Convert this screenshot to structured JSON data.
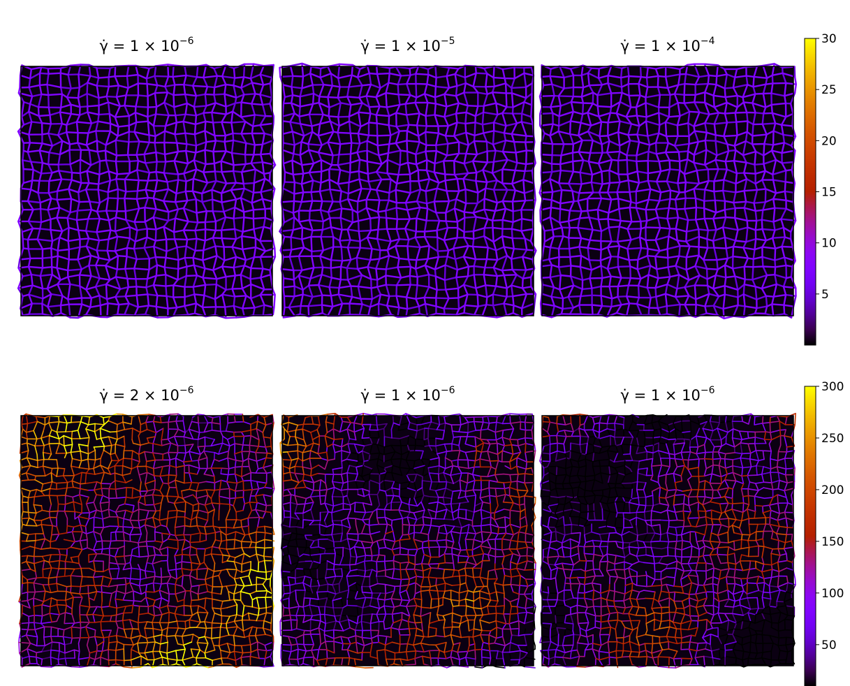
{
  "chart_data": [
    {
      "type": "heatmap-grid",
      "panels": [
        {
          "title": "γ̇ = 1 × 10",
          "title_exponent": "−6"
        },
        {
          "title": "γ̇ = 1 × 10",
          "title_exponent": "−5"
        },
        {
          "title": "γ̇ = 1 × 10",
          "title_exponent": "−4"
        }
      ],
      "colorbar": {
        "lim": [
          0,
          30
        ],
        "ticks": [
          5,
          10,
          15,
          20,
          25,
          30
        ],
        "colormap": "gnuplot"
      }
    },
    {
      "type": "heatmap-grid",
      "panels": [
        {
          "title": "γ̇ = 2 × 10",
          "title_exponent": "−6"
        },
        {
          "title": "γ̇ = 1 × 10",
          "title_exponent": "−6"
        },
        {
          "title": "γ̇ = 1 × 10",
          "title_exponent": "−6"
        }
      ],
      "colorbar": {
        "lim": [
          10,
          300
        ],
        "ticks": [
          50,
          100,
          150,
          200,
          250,
          300
        ],
        "colormap": "gnuplot"
      }
    }
  ]
}
